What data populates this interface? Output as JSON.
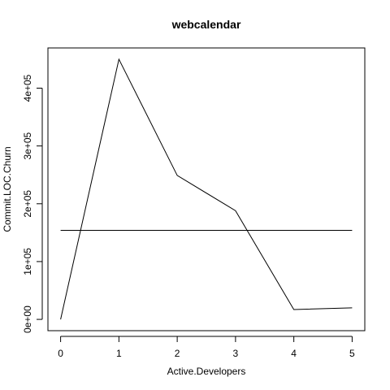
{
  "chart_data": {
    "type": "line",
    "title": "webcalendar",
    "xlabel": "Active.Developers",
    "ylabel": "Commit.LOC.Churn",
    "x": [
      0,
      1,
      2,
      3,
      4,
      5
    ],
    "xticks": [
      "0",
      "1",
      "2",
      "3",
      "4",
      "5"
    ],
    "yticks": [
      {
        "value": 0,
        "label": "0e+00"
      },
      {
        "value": 100000,
        "label": "1e+05"
      },
      {
        "value": 200000,
        "label": "2e+05"
      },
      {
        "value": 300000,
        "label": "3e+05"
      },
      {
        "value": 400000,
        "label": "4e+05"
      }
    ],
    "xlim": [
      0,
      5
    ],
    "ylim": [
      0,
      450000
    ],
    "series": [
      {
        "values": [
          0,
          450000,
          249000,
          188000,
          17000,
          20000
        ]
      }
    ],
    "reference_line": {
      "y": 154000
    },
    "grid": false,
    "line_color": "#000000"
  }
}
